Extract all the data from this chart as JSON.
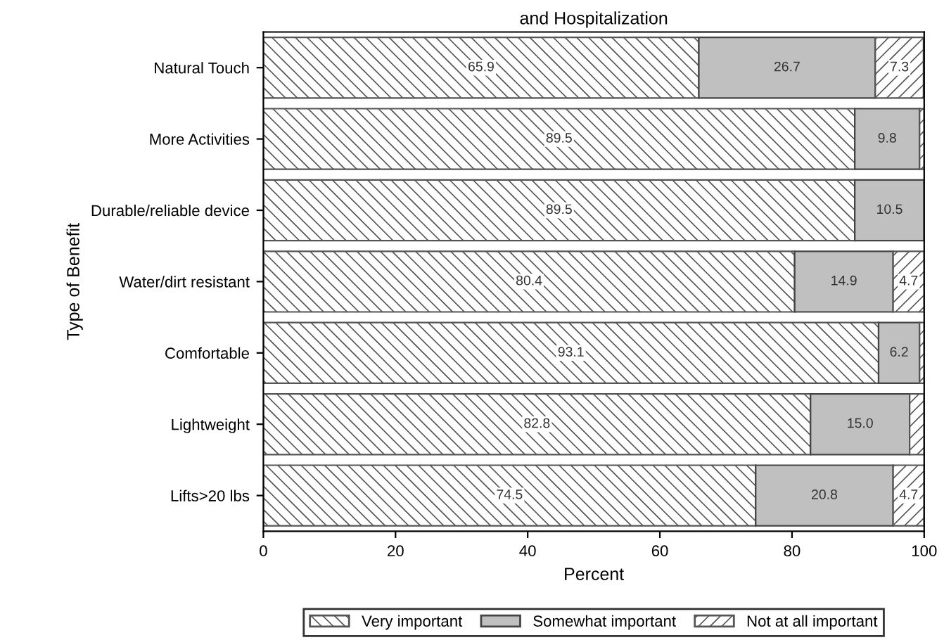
{
  "chart_data": {
    "type": "bar",
    "orientation": "horizontal",
    "stacked": true,
    "title": "and Hospitalization",
    "xlabel": "Percent",
    "ylabel": "Type of Benefit",
    "categories": [
      "Natural Touch",
      "More Activities",
      "Durable/reliable device",
      "Water/dirt resistant",
      "Comfortable",
      "Lightweight",
      "Lifts>20 lbs"
    ],
    "series": [
      {
        "name": "Very important",
        "color": "#555555",
        "values": [
          65.9,
          89.5,
          89.5,
          80.4,
          93.1,
          82.8,
          74.5
        ],
        "value_labels": [
          "65.9",
          "89.5",
          "89.5",
          "80.4",
          "93.1",
          "82.8",
          "74.5"
        ]
      },
      {
        "name": "Somewhat important",
        "color": "#c0c0c0",
        "values": [
          26.7,
          9.8,
          10.5,
          14.9,
          6.2,
          15.0,
          20.8
        ],
        "value_labels": [
          "26.7",
          "9.8",
          "10.5",
          "14.9",
          "6.2",
          "15.0",
          "20.8"
        ]
      },
      {
        "name": "Not at all important",
        "color": "#555555",
        "values": [
          7.3,
          0.7,
          0,
          4.7,
          0.7,
          2.2,
          4.7
        ],
        "value_labels": [
          "7.3",
          null,
          null,
          "4.7",
          null,
          null,
          "4.7"
        ]
      }
    ],
    "xlim": [
      0,
      100
    ],
    "xticks": [
      0,
      20,
      40,
      60,
      80,
      100
    ],
    "grid": false,
    "legend": "bottom"
  }
}
